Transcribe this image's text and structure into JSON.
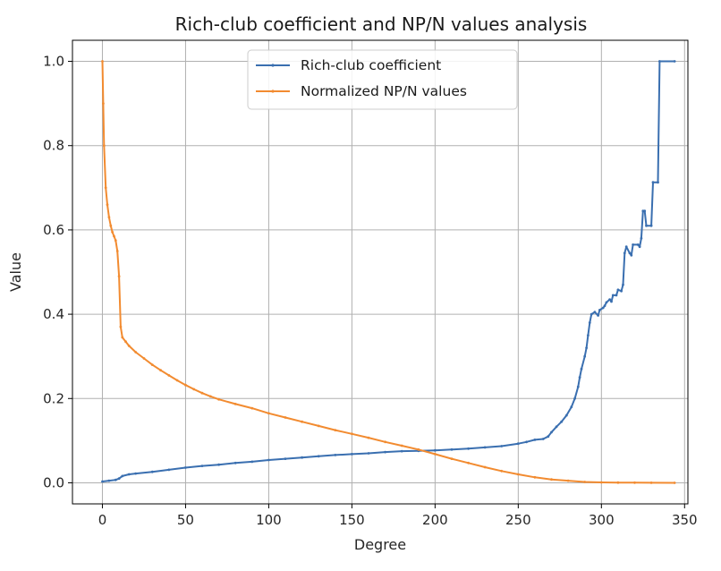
{
  "chart_data": {
    "type": "line",
    "title": "Rich-club coefficient and NP/N values analysis",
    "xlabel": "Degree",
    "ylabel": "Value",
    "xlim": [
      -18,
      352
    ],
    "ylim": [
      -0.05,
      1.05
    ],
    "xticks": [
      0,
      50,
      100,
      150,
      200,
      250,
      300,
      350
    ],
    "yticks": [
      0.0,
      0.2,
      0.4,
      0.6,
      0.8,
      1.0
    ],
    "xtick_labels": [
      "0",
      "50",
      "100",
      "150",
      "200",
      "250",
      "300",
      "350"
    ],
    "ytick_labels": [
      "0.0",
      "0.2",
      "0.4",
      "0.6",
      "0.8",
      "1.0"
    ],
    "grid": true,
    "legend_position": "upper center",
    "series": [
      {
        "name": "Rich-club coefficient",
        "color": "#3a6fb0",
        "marker": "point",
        "points": [
          [
            0,
            0.003
          ],
          [
            4,
            0.005
          ],
          [
            8,
            0.007
          ],
          [
            10,
            0.01
          ],
          [
            12,
            0.016
          ],
          [
            16,
            0.02
          ],
          [
            20,
            0.022
          ],
          [
            30,
            0.026
          ],
          [
            40,
            0.031
          ],
          [
            50,
            0.036
          ],
          [
            60,
            0.04
          ],
          [
            70,
            0.043
          ],
          [
            80,
            0.047
          ],
          [
            90,
            0.05
          ],
          [
            100,
            0.054
          ],
          [
            110,
            0.057
          ],
          [
            120,
            0.06
          ],
          [
            130,
            0.063
          ],
          [
            140,
            0.066
          ],
          [
            150,
            0.068
          ],
          [
            160,
            0.07
          ],
          [
            170,
            0.073
          ],
          [
            180,
            0.075
          ],
          [
            190,
            0.076
          ],
          [
            200,
            0.077
          ],
          [
            210,
            0.079
          ],
          [
            220,
            0.081
          ],
          [
            230,
            0.084
          ],
          [
            240,
            0.087
          ],
          [
            250,
            0.093
          ],
          [
            255,
            0.097
          ],
          [
            260,
            0.102
          ],
          [
            265,
            0.104
          ],
          [
            268,
            0.11
          ],
          [
            270,
            0.12
          ],
          [
            273,
            0.133
          ],
          [
            276,
            0.145
          ],
          [
            279,
            0.16
          ],
          [
            282,
            0.18
          ],
          [
            284,
            0.2
          ],
          [
            286,
            0.228
          ],
          [
            287,
            0.25
          ],
          [
            288,
            0.27
          ],
          [
            290,
            0.3
          ],
          [
            291,
            0.32
          ],
          [
            292,
            0.35
          ],
          [
            293,
            0.38
          ],
          [
            294,
            0.4
          ],
          [
            296,
            0.405
          ],
          [
            298,
            0.397
          ],
          [
            299,
            0.41
          ],
          [
            301,
            0.415
          ],
          [
            302,
            0.42
          ],
          [
            303,
            0.428
          ],
          [
            305,
            0.435
          ],
          [
            306,
            0.43
          ],
          [
            307,
            0.445
          ],
          [
            309,
            0.445
          ],
          [
            310,
            0.458
          ],
          [
            312,
            0.455
          ],
          [
            313,
            0.47
          ],
          [
            314,
            0.545
          ],
          [
            315,
            0.56
          ],
          [
            317,
            0.545
          ],
          [
            318,
            0.54
          ],
          [
            319,
            0.565
          ],
          [
            322,
            0.565
          ],
          [
            323,
            0.56
          ],
          [
            324,
            0.58
          ],
          [
            325,
            0.645
          ],
          [
            326,
            0.645
          ],
          [
            327,
            0.61
          ],
          [
            330,
            0.61
          ],
          [
            331,
            0.713
          ],
          [
            334,
            0.713
          ],
          [
            335,
            1.0
          ],
          [
            344,
            1.0
          ]
        ]
      },
      {
        "name": "Normalized NP/N values",
        "color": "#f28b30",
        "marker": "point",
        "points": [
          [
            0,
            1.0
          ],
          [
            0.5,
            0.9
          ],
          [
            1,
            0.8
          ],
          [
            2,
            0.7
          ],
          [
            3,
            0.66
          ],
          [
            4,
            0.63
          ],
          [
            5,
            0.61
          ],
          [
            6,
            0.595
          ],
          [
            7,
            0.585
          ],
          [
            8,
            0.575
          ],
          [
            9,
            0.55
          ],
          [
            10,
            0.49
          ],
          [
            11,
            0.37
          ],
          [
            12,
            0.345
          ],
          [
            14,
            0.335
          ],
          [
            16,
            0.325
          ],
          [
            20,
            0.31
          ],
          [
            25,
            0.295
          ],
          [
            30,
            0.28
          ],
          [
            35,
            0.267
          ],
          [
            40,
            0.255
          ],
          [
            45,
            0.243
          ],
          [
            50,
            0.232
          ],
          [
            55,
            0.222
          ],
          [
            60,
            0.213
          ],
          [
            65,
            0.205
          ],
          [
            70,
            0.198
          ],
          [
            80,
            0.187
          ],
          [
            90,
            0.177
          ],
          [
            100,
            0.165
          ],
          [
            110,
            0.155
          ],
          [
            120,
            0.145
          ],
          [
            130,
            0.135
          ],
          [
            140,
            0.125
          ],
          [
            150,
            0.116
          ],
          [
            160,
            0.107
          ],
          [
            170,
            0.097
          ],
          [
            180,
            0.088
          ],
          [
            190,
            0.079
          ],
          [
            200,
            0.068
          ],
          [
            210,
            0.057
          ],
          [
            220,
            0.047
          ],
          [
            230,
            0.037
          ],
          [
            240,
            0.028
          ],
          [
            250,
            0.02
          ],
          [
            260,
            0.013
          ],
          [
            270,
            0.008
          ],
          [
            280,
            0.005
          ],
          [
            290,
            0.002
          ],
          [
            300,
            0.001
          ],
          [
            310,
            0.0005
          ],
          [
            320,
            0.0003
          ],
          [
            330,
            0.0001
          ],
          [
            344,
            0.0
          ]
        ]
      }
    ]
  }
}
